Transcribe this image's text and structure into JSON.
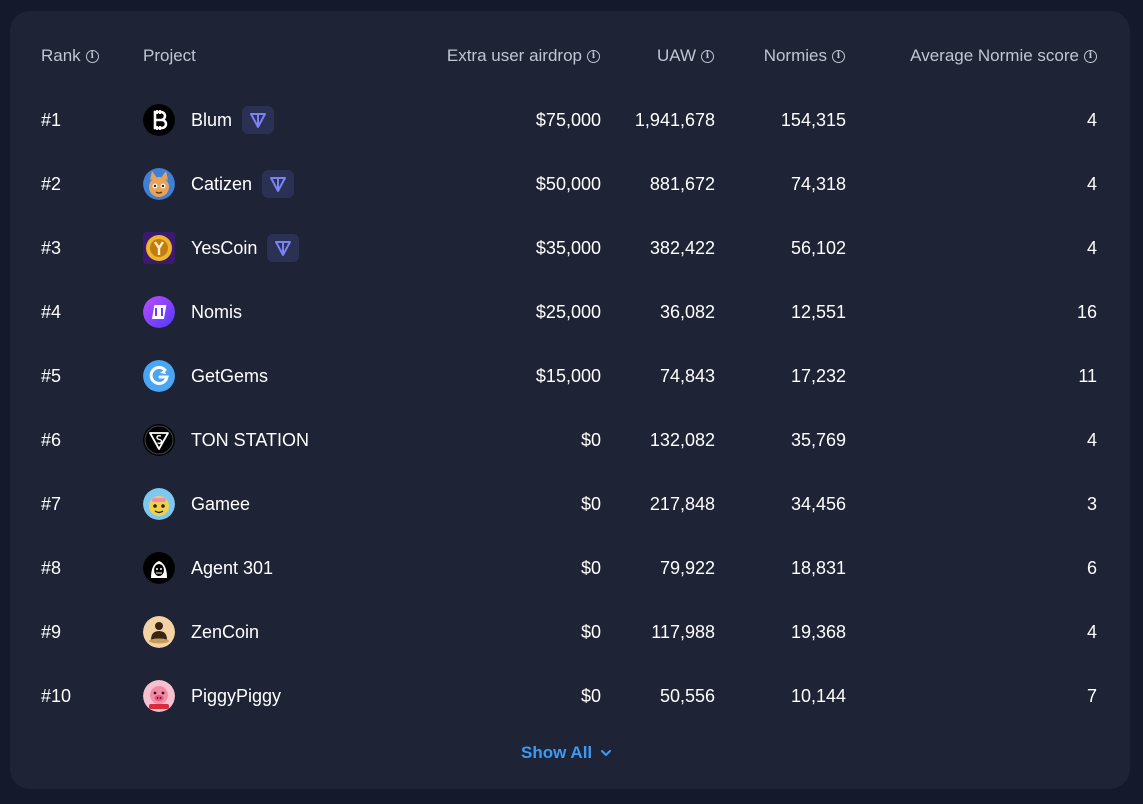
{
  "table": {
    "headers": {
      "rank": "Rank",
      "project": "Project",
      "extra_airdrop": "Extra user airdrop",
      "uaw": "UAW",
      "normies": "Normies",
      "avg_score": "Average Normie score"
    },
    "rows": [
      {
        "rank": "#1",
        "project": "Blum",
        "airdrop": "$75,000",
        "uaw": "1,941,678",
        "normies": "154,315",
        "score": "4",
        "logo_icon": "blum-logo-icon",
        "ton_badge": true
      },
      {
        "rank": "#2",
        "project": "Catizen",
        "airdrop": "$50,000",
        "uaw": "881,672",
        "normies": "74,318",
        "score": "4",
        "logo_icon": "catizen-logo-icon",
        "ton_badge": true
      },
      {
        "rank": "#3",
        "project": "YesCoin",
        "airdrop": "$35,000",
        "uaw": "382,422",
        "normies": "56,102",
        "score": "4",
        "logo_icon": "yescoin-logo-icon",
        "ton_badge": true
      },
      {
        "rank": "#4",
        "project": "Nomis",
        "airdrop": "$25,000",
        "uaw": "36,082",
        "normies": "12,551",
        "score": "16",
        "logo_icon": "nomis-logo-icon",
        "ton_badge": false
      },
      {
        "rank": "#5",
        "project": "GetGems",
        "airdrop": "$15,000",
        "uaw": "74,843",
        "normies": "17,232",
        "score": "11",
        "logo_icon": "getgems-logo-icon",
        "ton_badge": false
      },
      {
        "rank": "#6",
        "project": "TON STATION",
        "airdrop": "$0",
        "uaw": "132,082",
        "normies": "35,769",
        "score": "4",
        "logo_icon": "ton-station-logo-icon",
        "ton_badge": false
      },
      {
        "rank": "#7",
        "project": "Gamee",
        "airdrop": "$0",
        "uaw": "217,848",
        "normies": "34,456",
        "score": "3",
        "logo_icon": "gamee-logo-icon",
        "ton_badge": false
      },
      {
        "rank": "#8",
        "project": "Agent 301",
        "airdrop": "$0",
        "uaw": "79,922",
        "normies": "18,831",
        "score": "6",
        "logo_icon": "agent-301-logo-icon",
        "ton_badge": false
      },
      {
        "rank": "#9",
        "project": "ZenCoin",
        "airdrop": "$0",
        "uaw": "117,988",
        "normies": "19,368",
        "score": "4",
        "logo_icon": "zencoin-logo-icon",
        "ton_badge": false
      },
      {
        "rank": "#10",
        "project": "PiggyPiggy",
        "airdrop": "$0",
        "uaw": "50,556",
        "normies": "10,144",
        "score": "7",
        "logo_icon": "piggypiggy-logo-icon",
        "ton_badge": false
      }
    ]
  },
  "footer": {
    "show_all_label": "Show All"
  },
  "colors": {
    "background": "#141a2b",
    "panel": "#1e2336",
    "header_text": "#c0c5d3",
    "link": "#3b9bf5",
    "ton_badge": "#7b83f4"
  },
  "icons": {
    "info": "info-circle-icon",
    "ton": "ton-chain-icon",
    "show_all": "chevron-down-icon"
  }
}
